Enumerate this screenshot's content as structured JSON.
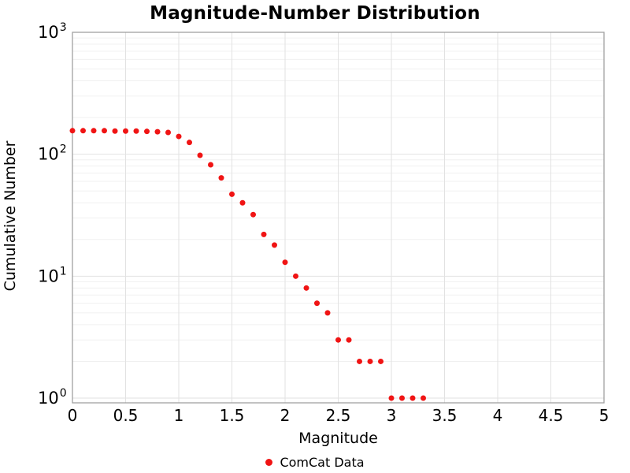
{
  "chart_data": {
    "type": "scatter",
    "title": "Magnitude-Number Distribution",
    "xlabel": "Magnitude",
    "ylabel": "Cumulative Number",
    "x_scale": "linear",
    "y_scale": "log",
    "xlim": [
      0,
      5
    ],
    "ylim": [
      1,
      1000
    ],
    "grid": true,
    "legend_position": "bottom-center",
    "x_ticks": [
      0,
      0.5,
      1,
      1.5,
      2,
      2.5,
      3,
      3.5,
      4,
      4.5,
      5
    ],
    "x_tick_labels": [
      "0",
      "0.5",
      "1",
      "1.5",
      "2",
      "2.5",
      "3",
      "3.5",
      "4",
      "4.5",
      "5"
    ],
    "y_tick_exponents": [
      0,
      1,
      2,
      3
    ],
    "y_tick_base": "10",
    "legend": [
      {
        "name": "ComCat Data",
        "color": "#f01414",
        "marker": "circle"
      }
    ],
    "series": [
      {
        "name": "ComCat Data",
        "color": "#f01414",
        "marker": "circle",
        "x": [
          0.0,
          0.1,
          0.2,
          0.3,
          0.4,
          0.5,
          0.6,
          0.7,
          0.8,
          0.9,
          1.0,
          1.1,
          1.2,
          1.3,
          1.4,
          1.5,
          1.6,
          1.7,
          1.8,
          1.9,
          2.0,
          2.1,
          2.2,
          2.3,
          2.4,
          2.5,
          2.6,
          2.7,
          2.8,
          2.9,
          3.0,
          3.1,
          3.2,
          3.3
        ],
        "y": [
          156,
          156,
          156,
          156,
          155,
          155,
          155,
          154,
          153,
          151,
          140,
          125,
          98,
          82,
          64,
          47,
          40,
          32,
          22,
          18,
          13,
          10,
          8,
          6,
          5,
          3,
          3,
          2,
          2,
          2,
          1,
          1,
          1,
          1
        ]
      }
    ],
    "colors": {
      "point": "#f01414",
      "spine": "#a0a0a0",
      "major_grid": "#e2e2e2",
      "minor_grid": "#f0f0f0",
      "text": "#000000",
      "background": "#ffffff"
    }
  }
}
